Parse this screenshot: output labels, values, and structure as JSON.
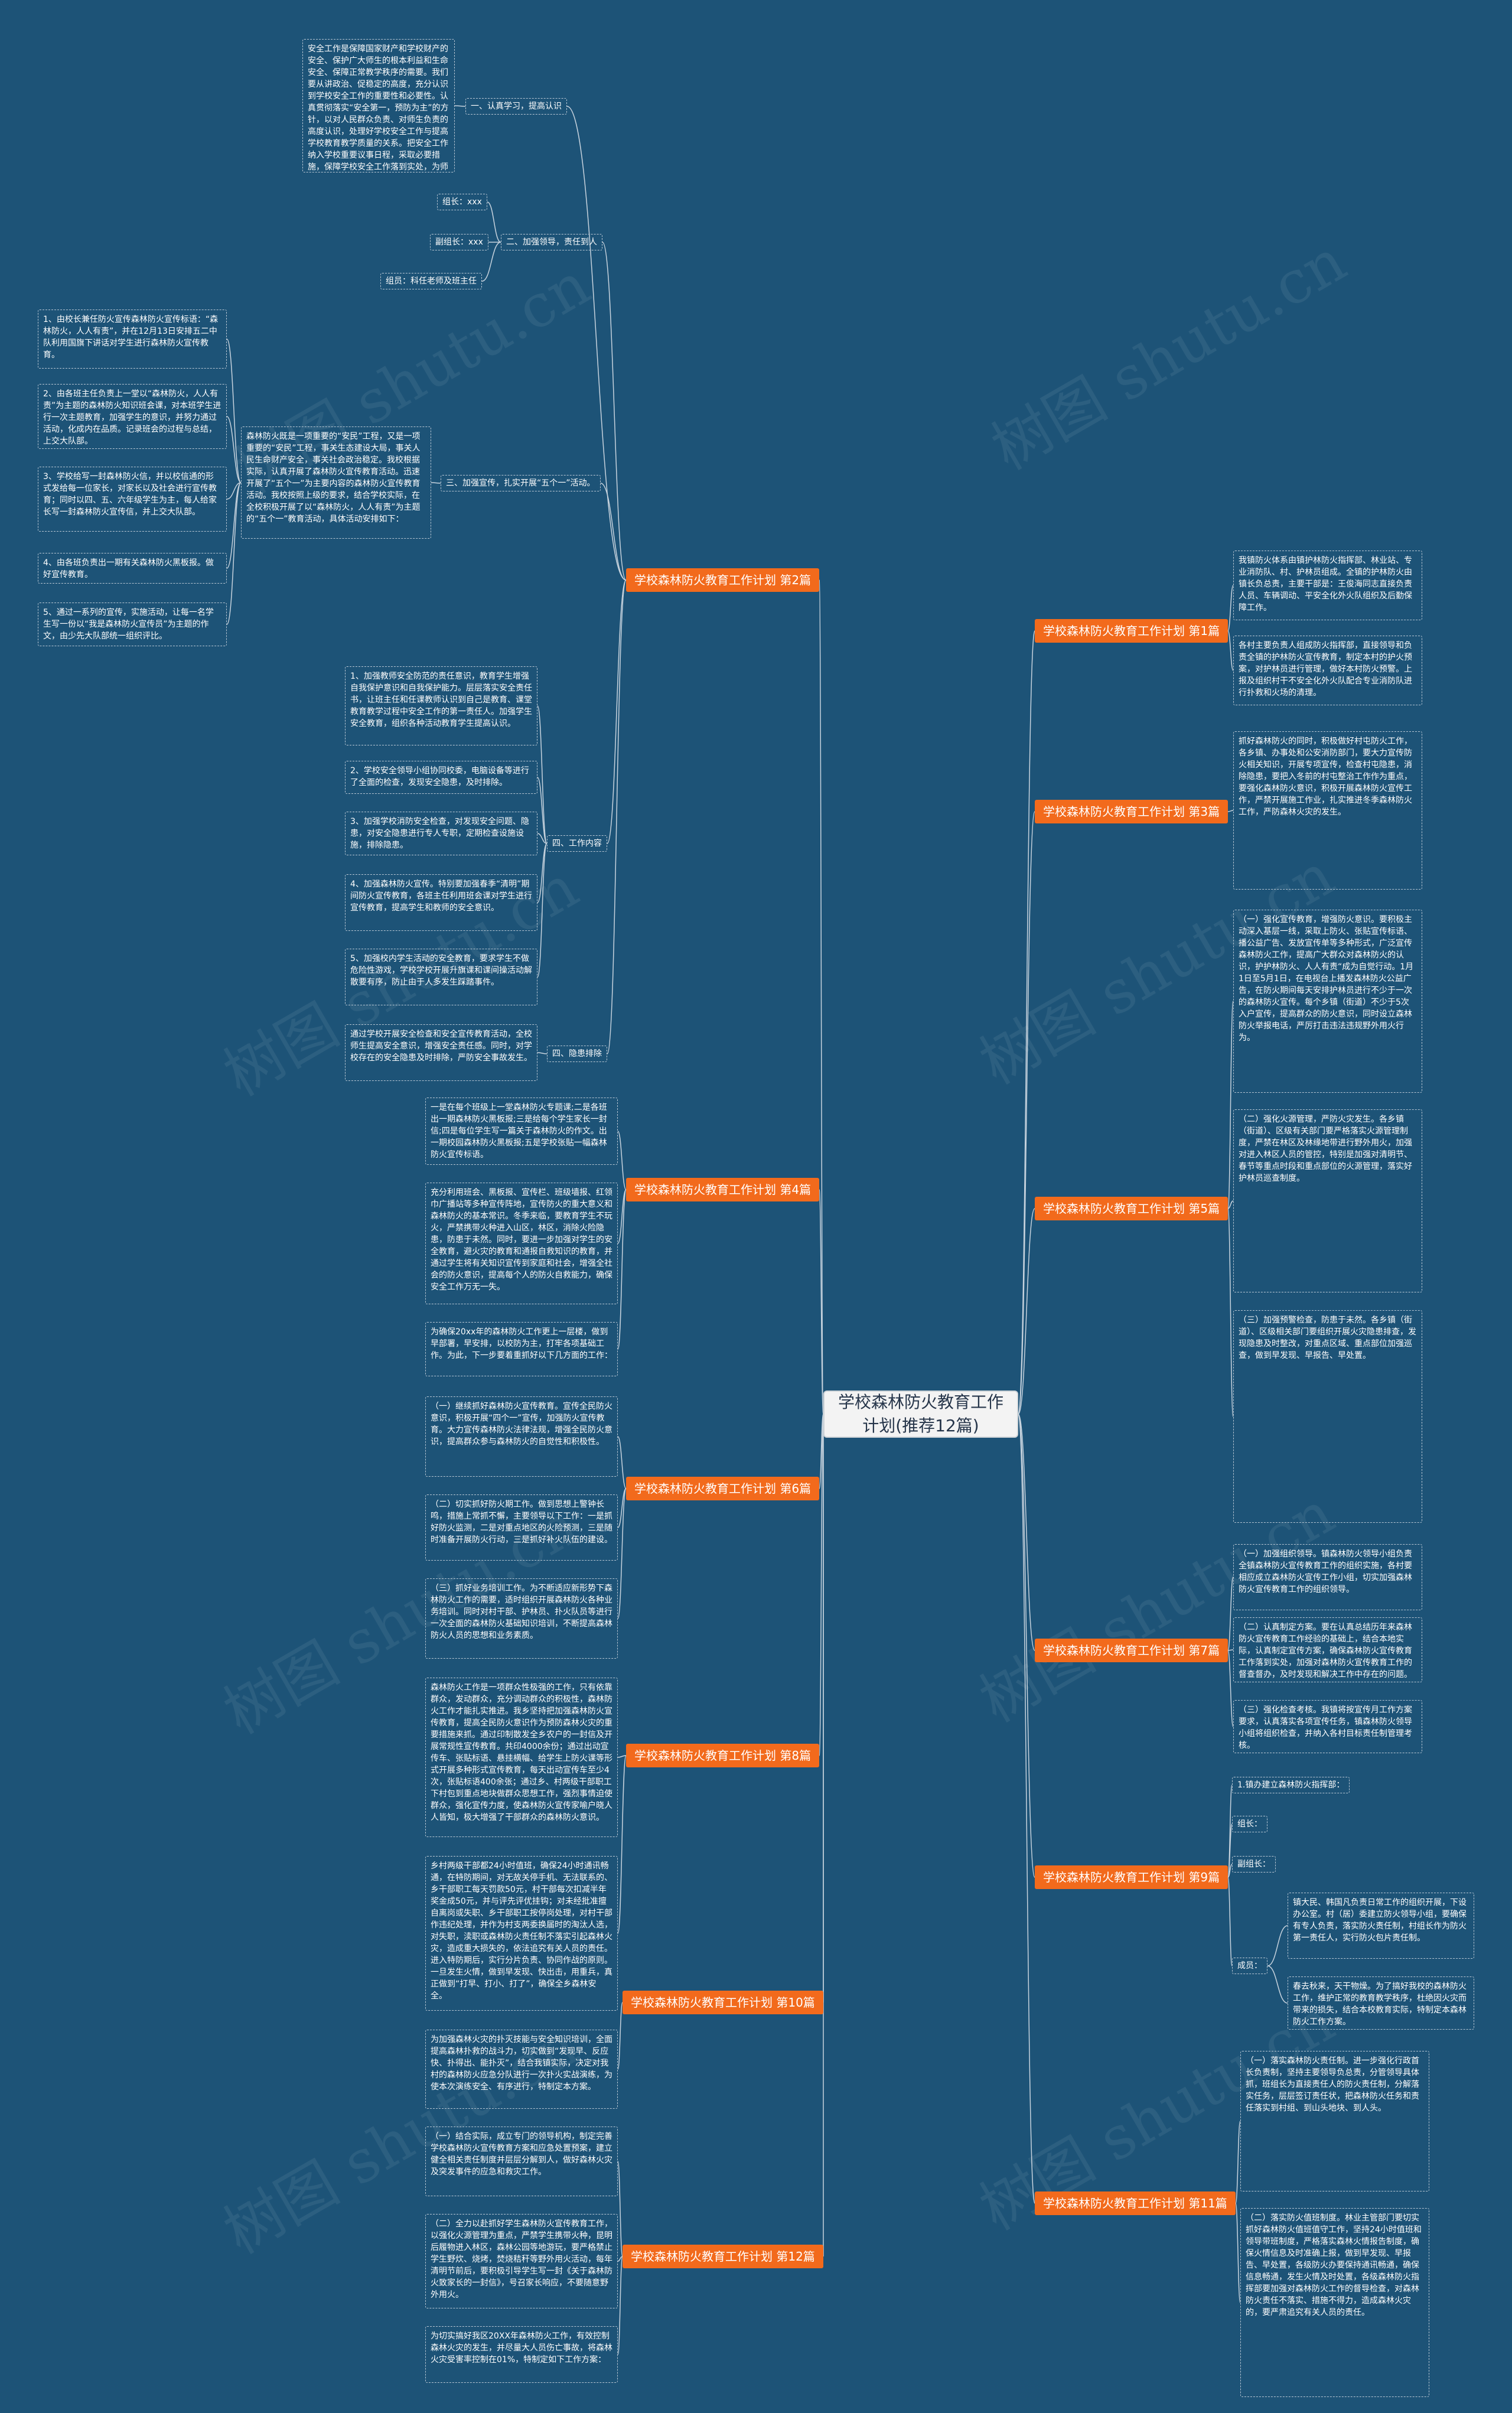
{
  "watermark": "树图 shutu.cn",
  "colors": {
    "background": "#1d5377",
    "category": "#f26a1c",
    "root": "#f3f3f3",
    "line": "#c7d3de"
  },
  "root": "学校森林防火教育工作计划(推荐12篇)",
  "cats": {
    "c1": "学校森林防火教育工作计划 第1篇",
    "c2": "学校森林防火教育工作计划 第2篇",
    "c3": "学校森林防火教育工作计划 第3篇",
    "c4": "学校森林防火教育工作计划 第4篇",
    "c5": "学校森林防火教育工作计划 第5篇",
    "c6": "学校森林防火教育工作计划 第6篇",
    "c7": "学校森林防火教育工作计划 第7篇",
    "c8": "学校森林防火教育工作计划 第8篇",
    "c9": "学校森林防火教育工作计划 第9篇",
    "c10": "学校森林防火教育工作计划 第10篇",
    "c11": "学校森林防火教育工作计划 第11篇",
    "c12": "学校森林防火教育工作计划 第12篇"
  },
  "c2": {
    "sub1": "一、认真学习，提高认识",
    "sub1_text": "安全工作是保障国家财产和学校财产的安全、保护广大师生的根本利益和生命安全、保障正常教学秩序的需要。我们要从讲政治、促稳定的高度，充分认识到学校安全工作的重要性和必要性。认真贯彻落实“安全第一，预防为主”的方针，以对人民群众负责、对师生负责的高度认识，处理好学校安全工作与提高学校教育教学质量的关系。把安全工作纳入学校重要议事日程，采取必要措施，保障学校安全工作落到实处，为师生营造了一个安全祥和的工作和学习环境。",
    "sub2": "二、加强领导，责任到人",
    "leader": "组长：xxx",
    "deputy": "副组长：xxx",
    "members": "组员：科任老师及班主任",
    "sub3": "三、加强宣传，扎实开展“五个一”活动。",
    "sub3_text": "森林防火既是一项重要的“安民”工程，又是一项重要的“安民”工程，事关生态建设大局，事关人民生命财产安全，事关社会政治稳定。我校根据实际，认真开展了森林防火宣传教育活动。迅速开展了“五个一”为主要内容的森林防火宣传教育活动。我校按照上级的要求，结合学校实际，在全校积极开展了以“森林防火，人人有责”为主题的“五个一”教育活动，具体活动安排如下：",
    "items": [
      "1、由校长兼任防火宣传森林防火宣传标语：“森林防火，人人有责”，并在12月13日安排五二中队利用国旗下讲话对学生进行森林防火宣传教育。",
      "2、由各班主任负责上一堂以“森林防火，人人有责”为主题的森林防火知识班会课，对本班学生进行一次主题教育，加强学生的意识，并努力通过活动，化成内在品质。记录班会的过程与总结，上交大队部。",
      "3、学校给写一封森林防火信，并以校信通的形式发给每一位家长，对家长以及社会进行宣传教育；同时以四、五、六年级学生为主，每人给家长写一封森林防火宣传信，并上交大队部。",
      "4、由各班负责出一期有关森林防火黑板报。做好宣传教育。",
      "5、通过一系列的宣传，实施活动，让每一名学生写一份以“我是森林防火宣传员”为主题的作文，由少先大队部统一组织评比。"
    ],
    "sub4": "四、工作内容",
    "work": [
      "1、加强教师安全防范的责任意识，教育学生增强自我保护意识和自我保护能力。层层落实安全责任书，让班主任和任课教师认识到自己是教育、课堂教育教学过程中安全工作的第一责任人。加强学生安全教育，组织各种活动教育学生提高认识。",
      "2、学校安全领导小组协同校委，电脑设备等进行了全面的检查，发现安全隐患，及时排除。",
      "3、加强学校消防安全检查，对发现安全问题、隐患，对安全隐患进行专人专职，定期检查设施设施，排除隐患。",
      "4、加强森林防火宣传。特别要加强春季“清明”期间防火宣传教育，各班主任利用班会课对学生进行宣传教育，提高学生和教师的安全意识。",
      "5、加强校内学生活动的安全教育，要求学生不做危险性游戏，学校学校开展升旗课和课间操活动解散要有序，防止由于人多发生踩踏事件。"
    ],
    "sub5": "四、隐患排除",
    "sub5_text": "通过学校开展安全检查和安全宣传教育活动，全校师生提高安全意识，增强安全责任感。同时，对学校存在的安全隐患及时排除，严防安全事故发生。"
  },
  "c4": [
    "一是在每个班级上一堂森林防火专题课;二是各班出一期森林防火黑板报;三是给每个学生家长一封信;四是每位学生写一篇关于森林防火的作文。出一期校园森林防火黑板报;五是学校张贴一幅森林防火宣传标语。",
    "充分利用班会、黑板报、宣传栏、班级墙报、红领巾广播站等多种宣传阵地，宣传防火的重大意义和森林防火的基本常识。冬季来临，要教育学生不玩火，严禁携带火种进入山区，林区，消除火险隐患，防患于未然。同时，要进一步加强对学生的安全教育，避火灾的教育和通报自救知识的教育，并通过学生将有关知识宣传到家庭和社会，增强全社会的防火意识，提高每个人的防火自救能力，确保安全工作万无一失。",
    "为确保20xx年的森林防火工作更上一层楼，做到早部署，早安排，以校防为主，打牢各项基础工作。为此，下一步要着重抓好以下几方面的工作："
  ],
  "c6": [
    "（一）继续抓好森林防火宣传教育。宣传全民防火意识，积极开展“四个一”宣传，加强防火宣传教育。大力宣传森林防火法律法规，增强全民防火意识，提高群众参与森林防火的自觉性和积极性。",
    "（二）切实抓好防火期工作。做到思想上警钟长鸣，措施上常抓不懈，主要领导以下工作：一是抓好防火监测，二是对重点地区的火险预测，三是随时准备开展防火行动，三是抓好补火队伍的建设。",
    "（三）抓好业务培训工作。为不断适应新形势下森林防火工作的需要，适时组织开展森林防火各种业务培训。同时对村干部、护林员、扑火队员等进行一次全面的森林防火基础知识培训，不断提高森林防火人员的思想和业务素质。"
  ],
  "c8": [
    "森林防火工作是一项群众性极强的工作，只有依靠群众，发动群众，充分调动群众的积极性，森林防火工作才能扎实推进。我乡坚持把加强森林防火宣传教育，提高全民防火意识作为预防森林火灾的重要措施来抓。通过印制散发全乡农户的一封信及开展常规性宣传教育。共印4000余份；通过出动宣传车、张贴标语、悬挂横幅、给学生上防火课等形式开展多种形式宣传教育，每天出动宣传车至少4次，张贴标语400余张；通过乡、村两级干部职工下村包到重点地块做群众思想工作，强烈事情迫使群众，强化宣传力度，使森林防火宣传家喻户晓人人皆知，极大增强了干部群众的森林防火意识。",
    "乡村两级干部都24小时值班，确保24小时通讯畅通，在特防期间，对无故关停手机、无法联系的、乡干部职工每天罚款50元，村干部每次扣减半年奖金成50元，并与评先评优挂钩；对未经批准擅自离岗或失职、乡干部职工按停岗处理，对村干部作违纪处理，并作为村支两委换届时的淘汰人选，对失职，渎职或森林防火责任制不落实引起森林火灾，造成重大损失的，依法追究有关人员的责任。进入特防期后，实行分片负责、协同作战的原则。一旦发生火情，做到早发现、快出击，用重兵，真正做到“打早、打小、打了”，确保全乡森林安全。"
  ],
  "c10": "为加强森林火灾的扑灭技能与安全知识培训，全面提高森林扑救的战斗力，切实做到“发现早、反应快、扑得出、能扑灭”，结合我镇实际，决定对我村的森林防火应急分队进行一次扑火实战演练，为使本次演练安全、有序进行，特制定本方案。",
  "c12": [
    "（一）结合实际，成立专门的领导机构，制定完善学校森林防火宣传教育方案和应急处置预案，建立健全相关责任制度并层层分解到人，做好森林火灾及突发事件的应急和救灾工作。",
    "（二）全力以赴抓好学生森林防火宣传教育工作，以强化火源管理为重点，严禁学生携带火种，昆明后履物进入林区，森林公园等地游玩，要严格禁止学生野炊、烧烤，焚烧秸秆等野外用火活动，每年清明节前后，要积极引导学生写一封《关于森林防火致家长的一封信》，号召家长响应，不要随意野外用火。",
    "为切实搞好我区20XX年森林防火工作，有效控制森林火灾的发生，并尽量大人员伤亡事故，将森林火灾受害率控制在01%，特制定如下工作方案："
  ],
  "c1": [
    "我镇防火体系由镇护林防火指挥部、林业站、专业消防队、村、护林员组成。全镇的护林防火由镇长负总责，主要干部是：王俊海同志直接负责人员、车辆调动、平安全化外火队组织及后勤保障工作。",
    "各村主要负责人组成防火指挥部，直接领导和负责全镇的护林防火宣传教育，制定本村的护火预案，对护林员进行管理，做好本村防火预警。上报及组织村干不安全化外火队配合专业消防队进行扑救和火场的清理。"
  ],
  "c3": "抓好森林防火的同时，积极做好村屯防火工作，各乡镇、办事处和公安消防部门，要大力宣传防火相关知识，开展专项宣传，检查村屯隐患，消除隐患，要把入冬前的村屯整治工作作为重点，要强化森林防火意识，积极开展森林防火宣传工作，严禁开展施工作业，扎实推进冬季森林防火工作，严防森林火灾的发生。",
  "c5": [
    "（一）强化宣传教育，增强防火意识。要积极主动深入基层一线，采取上防火、张贴宣传标语、播公益广告、发放宣传单等多种形式，广泛宣传森林防火工作，提高广大群众对森林防火的认识，护护林防火、人人有责“成为自觉行动。1月1日至5月1日，在电视台上播发森林防火公益广告，在防火期间每天安排护林员进行不少于一次的森林防火宣传。每个乡镇（街道）不少于5次入户宣传，提高群众的防火意识，同时设立森林防火举报电话，严厉打击违法违规野外用火行为。",
    "（二）强化火源管理，严防火灾发生。各乡镇（街道）、区级有关部门要严格落实火源管理制度，严禁在林区及林缘地带进行野外用火，加强对进入林区人员的管控，特别是加强对清明节、春节等重点时段和重点部位的火源管理，落实好护林员巡查制度。",
    "（三）加强预警检查，防患于未然。各乡镇（街道）、区级相关部门要组织开展火灾隐患排查，发现隐患及时整改，对重点区域、重点部位加强巡查，做到早发现、早报告、早处置。"
  ],
  "c7": [
    "（一）加强组织领导。镇森林防火领导小组负责全镇森林防火宣传教育工作的组织实施，各村要相应成立森林防火宣传工作小组，切实加强森林防火宣传教育工作的组织领导。",
    "（二）认真制定方案。要在认真总结历年来森林防火宣传教育工作经验的基础上，结合本地实际，认真制定宣传方案，确保森林防火宣传教育工作落到实处，加强对森林防火宣传教育工作的督查督办，及时发现和解决工作中存在的问题。",
    "（三）强化检查考核。我镇将按宣传月工作方案要求，认真落实各项宣传任务，镇森林防火领导小组将组织检查，并纳入各村目标责任制管理考核。"
  ],
  "c9": {
    "title": "1.镇办建立森林防火指挥部：",
    "leader": "组长：",
    "deputy": "副组长：",
    "members": "成员：",
    "members_text": "镇大民、韩国凡负责日常工作的组织开展，下设办公室。村（居）委建立防火领导小组，要确保有专人负责，落实防火责任制，村组长作为防火第一责任人，实行防火包片责任制。",
    "extra": "春去秋来，天干物燥。为了搞好我校的森林防火工作，维护正常的教育教学秩序，杜绝因火灾而带来的损失，结合本校教育实际，特制定本森林防火工作方案。"
  },
  "c11": [
    "（一）落实森林防火责任制。进一步强化行政首长负责制，坚持主要领导负总责，分管领导具体抓，班组长为直接责任人的防火责任制，分解落实任务，层层签订责任状，把森林防火任务和责任落实到村组、到山头地块、到人头。",
    "（二）落实防火值班制度。林业主管部门要切实抓好森林防火值班值守工作，坚持24小时值班和领导带班制度，严格落实森林火情报告制度，确保火情信息及时准确上报，做到早发现、早报告、早处置，各级防火办要保持通讯畅通，确保信息畅通，发生火情及时处置，各级森林防火指挥部要加强对森林防火工作的督导检查，对森林防火责任不落实、措施不得力，造成森林火灾的，要严肃追究有关人员的责任。"
  ]
}
